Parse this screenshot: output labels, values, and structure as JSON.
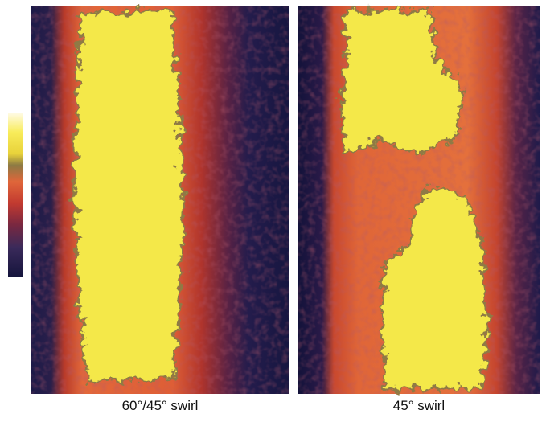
{
  "panels": [
    {
      "label": "60°/45° swirl"
    },
    {
      "label": "45° swirl"
    }
  ]
}
